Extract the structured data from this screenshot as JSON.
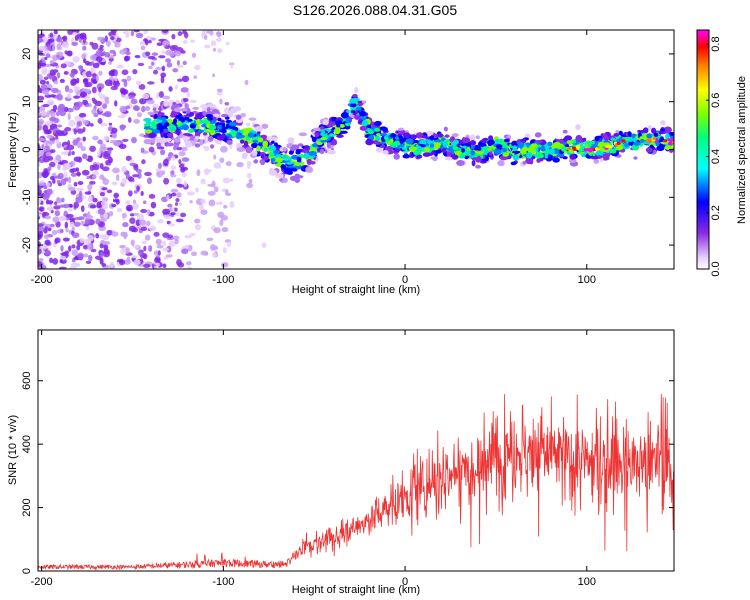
{
  "title": "S126.2026.088.04.31.G05",
  "colors": {
    "snr_line": "#ee3333",
    "axis": "#000000",
    "scatter_base": "#8a2be2"
  },
  "chart_data": [
    {
      "type": "heatmap",
      "name": "spectrogram",
      "xlabel": "Height of straight line (km)",
      "ylabel": "Frequency (Hz)",
      "xlim": [
        -202,
        148
      ],
      "ylim": [
        -25,
        25
      ],
      "xticks": [
        -200,
        -100,
        0,
        100
      ],
      "xtick_labels": [
        "-200",
        "-100",
        "0",
        "100"
      ],
      "yticks": [
        -20,
        -10,
        0,
        10,
        20
      ],
      "ytick_labels": [
        "-20",
        "-10",
        "0",
        "10",
        "20"
      ],
      "colorbar": {
        "label": "Normalized spectral amplitude",
        "range": [
          0,
          0.85
        ],
        "ticks": [
          0.0,
          0.2,
          0.4,
          0.6,
          0.8
        ],
        "tick_labels": [
          "0.0",
          "0.2",
          "0.4",
          "0.6",
          "0.8"
        ]
      },
      "signal_track": {
        "x": [
          -140,
          -125,
          -110,
          -95,
          -85,
          -75,
          -68,
          -60,
          -52,
          -45,
          -38,
          -32,
          -28,
          -25,
          -20,
          -15,
          -10,
          -5,
          0,
          10,
          20,
          30,
          40,
          50,
          60,
          70,
          80,
          90,
          100,
          110,
          120,
          130,
          140,
          148
        ],
        "freq": [
          5,
          5.5,
          5,
          4,
          2.5,
          0,
          -2.5,
          -3,
          -1,
          3,
          4,
          6,
          10,
          8,
          4,
          3,
          2,
          1.5,
          1,
          0.5,
          1.5,
          0,
          -0.5,
          1,
          -0.5,
          0,
          0,
          0.5,
          0,
          0.5,
          1.5,
          2,
          2,
          1.5
        ]
      }
    },
    {
      "type": "line",
      "name": "snr",
      "xlabel": "Height of straight line (km)",
      "ylabel": "SNR (10 * v/v)",
      "xlim": [
        -202,
        148
      ],
      "ylim": [
        0,
        760
      ],
      "xticks": [
        -200,
        -100,
        0,
        100
      ],
      "xtick_labels": [
        "-200",
        "-100",
        "0",
        "100"
      ],
      "yticks": [
        0,
        200,
        400,
        600
      ],
      "ytick_labels": [
        "0",
        "200",
        "400",
        "600"
      ],
      "envelope": {
        "x": [
          -202,
          -150,
          -115,
          -100,
          -80,
          -65,
          -55,
          -40,
          -30,
          -20,
          -10,
          0,
          10,
          20,
          30,
          40,
          50,
          60,
          70,
          80,
          90,
          100,
          110,
          120,
          130,
          140,
          148
        ],
        "mean": [
          15,
          15,
          25,
          30,
          25,
          25,
          80,
          100,
          130,
          160,
          200,
          230,
          270,
          300,
          320,
          340,
          370,
          380,
          380,
          370,
          350,
          340,
          330,
          330,
          340,
          350,
          330
        ]
      }
    }
  ]
}
